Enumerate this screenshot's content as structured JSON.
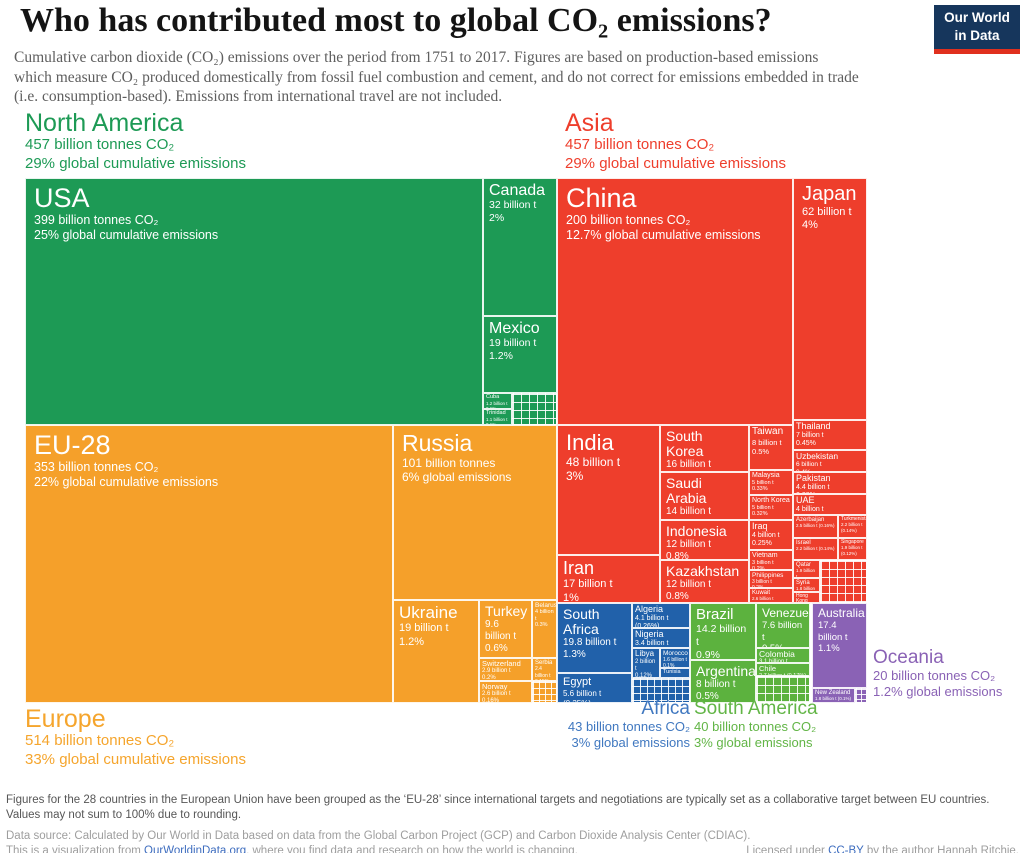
{
  "header": {
    "title": "Who has contributed most to global CO₂ emissions?",
    "subtitle_lines": [
      "Cumulative carbon dioxide (CO₂) emissions over the period from 1751 to 2017. Figures are based on production-based emissions",
      "which measure CO₂ produced domestically from fossil fuel combustion and cement, and do not correct for emissions embedded in trade",
      "(i.e. consumption-based). Emissions from international travel are not included."
    ],
    "logo": {
      "line1": "Our World",
      "line2": "in Data"
    }
  },
  "footer": {
    "note1": "Figures for the 28 countries in the European Union have been grouped as the ‘EU-28’ since international targets and negotiations are typically set as a collaborative target between EU countries.",
    "note2": "Values may not sum to 100% due to rounding.",
    "source": "Data source: Calculated by Our World in Data based on data from the Global Carbon Project (GCP) and Carbon Dioxide Analysis Center (CDIAC).",
    "viz_prefix": "This is a visualization from ",
    "viz_link": "OurWorldinData.org",
    "viz_suffix": ", where you find data and research on how the world is changing.",
    "license_prefix": "Licensed under ",
    "license_link": "CC-BY",
    "license_suffix": " by the author Hannah Ritchie."
  },
  "chart_data": {
    "type": "treemap",
    "title": "Who has contributed most to global CO₂ emissions?",
    "period": "1751 to 2017",
    "unit": "billion tonnes CO₂",
    "regions": [
      {
        "id": "north_america",
        "name": "North America",
        "tonnes": "457 billion tonnes CO₂",
        "share": "29% global cumulative emissions",
        "tonnes_bn": 457,
        "share_pct": 29,
        "color": "#1d9a55"
      },
      {
        "id": "asia",
        "name": "Asia",
        "tonnes": "457 billion tonnes CO₂",
        "share": "29% global cumulative emissions",
        "tonnes_bn": 457,
        "share_pct": 29,
        "color": "#ee3e2c"
      },
      {
        "id": "europe",
        "name": "Europe",
        "tonnes": "514 billion tonnes CO₂",
        "share": "33% global cumulative emissions",
        "tonnes_bn": 514,
        "share_pct": 33,
        "color": "#f5a02a"
      },
      {
        "id": "africa",
        "name": "Africa",
        "tonnes": "43 billion tonnes CO₂",
        "share": "3% global emissions",
        "tonnes_bn": 43,
        "share_pct": 3,
        "color": "#2161aa"
      },
      {
        "id": "south_america",
        "name": "South America",
        "tonnes": "40 billion tonnes CO₂",
        "share": "3% global emissions",
        "tonnes_bn": 40,
        "share_pct": 3,
        "color": "#5cb23e"
      },
      {
        "id": "oceania",
        "name": "Oceania",
        "tonnes": "20 billion tonnes CO₂",
        "share": "1.2% global emissions",
        "tonnes_bn": 20,
        "share_pct": 1.2,
        "color": "#8a62b5"
      }
    ],
    "tiles": [
      {
        "region": "north_america",
        "name": "USA",
        "v": 399,
        "lines": [
          "399 billion tonnes CO₂",
          "25% global cumulative emissions"
        ],
        "r": [
          25,
          178,
          458,
          247
        ],
        "nf": 27,
        "lf": 12.5
      },
      {
        "region": "north_america",
        "name": "Canada",
        "v": 32,
        "lines": [
          "32 billion t",
          "2%"
        ],
        "r": [
          483,
          178,
          74,
          138
        ],
        "nf": 16,
        "lf": 10.5
      },
      {
        "region": "north_america",
        "name": "Mexico",
        "v": 19,
        "lines": [
          "19 billion t",
          "1.2%"
        ],
        "r": [
          483,
          316,
          74,
          77
        ],
        "nf": 16,
        "lf": 10.5
      },
      {
        "region": "north_america",
        "name": "Cuba",
        "v": 1.2,
        "lines": [
          "1.2 billion t",
          "0.1%"
        ],
        "r": [
          483,
          393,
          29,
          16
        ],
        "nf": 5.5,
        "lf": 4.5
      },
      {
        "region": "north_america",
        "name": "Trinidad",
        "v": 1.1,
        "lines": [
          "1.1 billion t",
          "0.1%"
        ],
        "r": [
          483,
          409,
          29,
          16
        ],
        "nf": 5.5,
        "lf": 4.5
      },
      {
        "region": "europe",
        "name": "EU-28",
        "v": 353,
        "lines": [
          "353 billion tonnes CO₂",
          "22% global cumulative emissions"
        ],
        "r": [
          25,
          425,
          368,
          278
        ],
        "nf": 27,
        "lf": 12.5
      },
      {
        "region": "europe",
        "name": "Russia",
        "v": 101,
        "lines": [
          "101 billion tonnes",
          "6% global emissions"
        ],
        "r": [
          393,
          425,
          164,
          175
        ],
        "nf": 23,
        "lf": 12
      },
      {
        "region": "europe",
        "name": "Ukraine",
        "v": 19,
        "lines": [
          "19 billion t",
          "1.2%"
        ],
        "r": [
          393,
          600,
          86,
          103
        ],
        "nf": 17,
        "lf": 11
      },
      {
        "region": "europe",
        "name": "Turkey",
        "v": 9.6,
        "lines": [
          "9.6 billion t",
          "0.6%"
        ],
        "r": [
          479,
          600,
          53,
          58
        ],
        "nf": 14,
        "lf": 10
      },
      {
        "region": "europe",
        "name": "Belarus",
        "v": 4,
        "lines": [
          "4 billion t",
          "0.3%"
        ],
        "r": [
          532,
          600,
          25,
          58
        ],
        "nf": 6.5,
        "lf": 5.5
      },
      {
        "region": "europe",
        "name": "Switzerland",
        "v": 2.9,
        "lines": [
          "2.9 billion t",
          "0.2%"
        ],
        "r": [
          479,
          658,
          53,
          23
        ],
        "nf": 7.5,
        "lf": 6
      },
      {
        "region": "europe",
        "name": "Serbia",
        "v": 2.4,
        "lines": [
          "2.4 billion t",
          "0.15%"
        ],
        "r": [
          532,
          658,
          25,
          23
        ],
        "nf": 6,
        "lf": 5
      },
      {
        "region": "europe",
        "name": "Norway",
        "v": 2.6,
        "lines": [
          "2.6 billion t",
          "0.16%"
        ],
        "r": [
          479,
          681,
          53,
          22
        ],
        "nf": 7.5,
        "lf": 6
      },
      {
        "region": "asia",
        "name": "China",
        "v": 200,
        "lines": [
          "200 billion tonnes CO₂",
          "12.7% global cumulative emissions"
        ],
        "r": [
          557,
          178,
          236,
          247
        ],
        "nf": 27,
        "lf": 12.5
      },
      {
        "region": "asia",
        "name": "Japan",
        "v": 62,
        "lines": [
          "62 billion t",
          "4%"
        ],
        "r": [
          793,
          178,
          74,
          242
        ],
        "nf": 20,
        "lf": 11
      },
      {
        "region": "asia",
        "name": "India",
        "v": 48,
        "lines": [
          "48 billion t",
          "3%"
        ],
        "r": [
          557,
          425,
          103,
          130
        ],
        "nf": 22,
        "lf": 12
      },
      {
        "region": "asia",
        "name": "Iran",
        "v": 17,
        "lines": [
          "17 billion t",
          "1%"
        ],
        "r": [
          557,
          555,
          103,
          48
        ],
        "nf": 18,
        "lf": 11
      },
      {
        "region": "asia",
        "name": "South Korea",
        "v": 16,
        "lines": [
          "16 billion t",
          "1%"
        ],
        "r": [
          660,
          425,
          89,
          47
        ],
        "nf": 14,
        "lf": 10
      },
      {
        "region": "asia",
        "name": "Saudi Arabia",
        "v": 14,
        "lines": [
          "14 billion t",
          "0.9%"
        ],
        "r": [
          660,
          472,
          89,
          48
        ],
        "nf": 14,
        "lf": 10
      },
      {
        "region": "asia",
        "name": "Indonesia",
        "v": 12,
        "lines": [
          "12 billion t",
          "0.8%"
        ],
        "r": [
          660,
          520,
          89,
          40
        ],
        "nf": 14,
        "lf": 10
      },
      {
        "region": "asia",
        "name": "Kazakhstan",
        "v": 12,
        "lines": [
          "12 billion t",
          "0.8%"
        ],
        "r": [
          660,
          560,
          89,
          43
        ],
        "nf": 14,
        "lf": 10
      },
      {
        "region": "asia",
        "name": "Taiwan",
        "v": 8,
        "lines": [
          "8 billion t",
          "0.5%"
        ],
        "r": [
          749,
          425,
          44,
          45
        ],
        "nf": 10,
        "lf": 7.5
      },
      {
        "region": "asia",
        "name": "Malaysia",
        "v": 5,
        "lines": [
          "5 billion t",
          "0.33%"
        ],
        "r": [
          749,
          470,
          44,
          25
        ],
        "nf": 7,
        "lf": 5.5
      },
      {
        "region": "asia",
        "name": "North Korea",
        "v": 5,
        "lines": [
          "5 billion t",
          "0.32%"
        ],
        "r": [
          749,
          495,
          44,
          25
        ],
        "nf": 7,
        "lf": 5.5
      },
      {
        "region": "asia",
        "name": "Iraq",
        "v": 4,
        "lines": [
          "4 billion t",
          "0.25%"
        ],
        "r": [
          749,
          520,
          44,
          30
        ],
        "nf": 9,
        "lf": 7
      },
      {
        "region": "asia",
        "name": "Vietnam",
        "v": 3,
        "lines": [
          "3 billion t",
          "0.2%"
        ],
        "r": [
          749,
          550,
          44,
          20
        ],
        "nf": 7,
        "lf": 5.5
      },
      {
        "region": "asia",
        "name": "Philippines",
        "v": 3,
        "lines": [
          "3 billion t",
          "0.2%"
        ],
        "r": [
          749,
          570,
          44,
          18
        ],
        "nf": 6.5,
        "lf": 5
      },
      {
        "region": "asia",
        "name": "Kuwait",
        "v": 2.6,
        "lines": [
          "2.6 billion t",
          "0.17%"
        ],
        "r": [
          749,
          588,
          44,
          15
        ],
        "nf": 6,
        "lf": 4.5
      },
      {
        "region": "asia",
        "name": "Thailand",
        "v": 7,
        "lines": [
          "7 billion t",
          "0.45%"
        ],
        "r": [
          793,
          420,
          74,
          30
        ],
        "nf": 9,
        "lf": 7
      },
      {
        "region": "asia",
        "name": "Uzbekistan",
        "v": 6,
        "lines": [
          "6 billion t",
          "0.4%"
        ],
        "r": [
          793,
          450,
          74,
          22
        ],
        "nf": 8.5,
        "lf": 6.5
      },
      {
        "region": "asia",
        "name": "Pakistan",
        "v": 4.4,
        "lines": [
          "4.4 billion t",
          "0.28%"
        ],
        "r": [
          793,
          472,
          74,
          22
        ],
        "nf": 9,
        "lf": 7
      },
      {
        "region": "asia",
        "name": "UAE",
        "v": 4,
        "lines": [
          "4 billion t",
          "0.26%"
        ],
        "r": [
          793,
          494,
          74,
          21
        ],
        "nf": 9,
        "lf": 7
      },
      {
        "region": "asia",
        "name": "Azerbaijan",
        "v": 2.5,
        "lines": [
          "2.5 billion t (0.16%)"
        ],
        "r": [
          793,
          515,
          45,
          23
        ],
        "nf": 6,
        "lf": 4.5
      },
      {
        "region": "asia",
        "name": "Turkmenistan",
        "v": 2.2,
        "lines": [
          "2.2 billion t (0.14%)"
        ],
        "r": [
          838,
          515,
          29,
          23
        ],
        "nf": 5,
        "lf": 4.5
      },
      {
        "region": "asia",
        "name": "Israel",
        "v": 2.2,
        "lines": [
          "2.2 billion t (0.14%)"
        ],
        "r": [
          793,
          538,
          45,
          22
        ],
        "nf": 6,
        "lf": 4.5
      },
      {
        "region": "asia",
        "name": "Singapore",
        "v": 1.9,
        "lines": [
          "1.9 billion t (0.12%)"
        ],
        "r": [
          838,
          538,
          29,
          22
        ],
        "nf": 5,
        "lf": 4.5
      },
      {
        "region": "asia",
        "name": "Qatar",
        "v": 1.9,
        "lines": [
          "1.9 billion t",
          "0.12%"
        ],
        "r": [
          793,
          560,
          27,
          18
        ],
        "nf": 6,
        "lf": 4.5
      },
      {
        "region": "asia",
        "name": "Syria",
        "v": 1.8,
        "lines": [
          "1.8 billion t",
          "0.11%"
        ],
        "r": [
          793,
          578,
          27,
          14
        ],
        "nf": 6,
        "lf": 4.5
      },
      {
        "region": "asia",
        "name": "Hong Kong",
        "v": 1.6,
        "lines": [
          "1.6 billion t",
          "0.1%"
        ],
        "r": [
          793,
          592,
          27,
          11
        ],
        "nf": 5,
        "lf": 4
      },
      {
        "region": "africa",
        "name": "South Africa",
        "v": 19.8,
        "lines": [
          "19.8 billion t",
          "1.3%"
        ],
        "r": [
          557,
          603,
          75,
          70
        ],
        "nf": 14,
        "lf": 10
      },
      {
        "region": "africa",
        "name": "Egypt",
        "v": 5.6,
        "lines": [
          "5.6 billion t (0.35%)"
        ],
        "r": [
          557,
          673,
          75,
          30
        ],
        "nf": 11,
        "lf": 8
      },
      {
        "region": "africa",
        "name": "Algeria",
        "v": 4.1,
        "lines": [
          "4.1 billion t (0.26%)"
        ],
        "r": [
          632,
          603,
          58,
          25
        ],
        "nf": 9,
        "lf": 7
      },
      {
        "region": "africa",
        "name": "Nigeria",
        "v": 3.4,
        "lines": [
          "3.4 billion t (0.21%)"
        ],
        "r": [
          632,
          628,
          58,
          20
        ],
        "nf": 9,
        "lf": 7
      },
      {
        "region": "africa",
        "name": "Libya",
        "v": 2,
        "lines": [
          "2 billion t",
          "0.12%"
        ],
        "r": [
          632,
          648,
          28,
          30
        ],
        "nf": 8,
        "lf": 6
      },
      {
        "region": "africa",
        "name": "Morocco",
        "v": 1.6,
        "lines": [
          "1.6 billion t",
          "0.1%"
        ],
        "r": [
          660,
          648,
          30,
          20
        ],
        "nf": 6.5,
        "lf": 5
      },
      {
        "region": "africa",
        "name": "Tunisia",
        "lines": [],
        "r": [
          660,
          668,
          30,
          10
        ],
        "nf": 5.5,
        "lf": 4
      },
      {
        "region": "south_america",
        "name": "Brazil",
        "v": 14.2,
        "lines": [
          "14.2 billion t",
          "0.9%"
        ],
        "r": [
          690,
          603,
          66,
          57
        ],
        "nf": 15,
        "lf": 10.5
      },
      {
        "region": "south_america",
        "name": "Argentina",
        "v": 8,
        "lines": [
          "8 billion t",
          "0.5%"
        ],
        "r": [
          690,
          660,
          66,
          43
        ],
        "nf": 14,
        "lf": 10
      },
      {
        "region": "south_america",
        "name": "Venezuela",
        "v": 7.6,
        "lines": [
          "7.6 billion t",
          "0.5%"
        ],
        "r": [
          756,
          603,
          54,
          45
        ],
        "nf": 12,
        "lf": 9.5
      },
      {
        "region": "south_america",
        "name": "Colombia",
        "v": 3.1,
        "lines": [
          "3.1 billion t (0.2%)"
        ],
        "r": [
          756,
          648,
          54,
          15
        ],
        "nf": 8.5,
        "lf": 6
      },
      {
        "region": "south_america",
        "name": "Chile",
        "v": 2.7,
        "lines": [
          "2.7 billion t (0.17%)"
        ],
        "r": [
          756,
          663,
          54,
          13
        ],
        "nf": 7.5,
        "lf": 5.5
      },
      {
        "region": "oceania",
        "name": "Australia",
        "v": 17.4,
        "lines": [
          "17.4 billion t",
          "1.1%"
        ],
        "r": [
          812,
          603,
          55,
          85
        ],
        "nf": 12,
        "lf": 9.5
      },
      {
        "region": "oceania",
        "name": "New Zealand",
        "v": 1.8,
        "lines": [
          "1.8 billion t (0.1%)"
        ],
        "r": [
          812,
          688,
          43,
          15
        ],
        "nf": 6,
        "lf": 4.5
      }
    ],
    "grids": [
      {
        "region": "north_america",
        "r": [
          512,
          393,
          45,
          32
        ],
        "cell": 8
      },
      {
        "region": "europe",
        "r": [
          532,
          681,
          25,
          22
        ],
        "cell": 6
      },
      {
        "region": "asia",
        "r": [
          820,
          560,
          47,
          43
        ],
        "cell": 8
      },
      {
        "region": "africa",
        "r": [
          632,
          678,
          58,
          25
        ],
        "cell": 7
      },
      {
        "region": "south_america",
        "r": [
          756,
          676,
          54,
          27
        ],
        "cell": 8
      },
      {
        "region": "oceania",
        "r": [
          855,
          688,
          12,
          15
        ],
        "cell": 5
      }
    ]
  }
}
